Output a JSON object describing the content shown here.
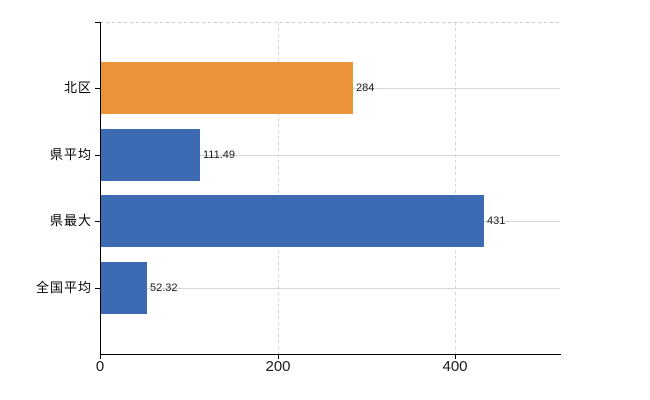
{
  "chart_data": {
    "type": "bar",
    "orientation": "horizontal",
    "title": "",
    "legend": "none",
    "categories": [
      "北区",
      "県平均",
      "県最大",
      "全国平均"
    ],
    "values": [
      284,
      111.49,
      431,
      52.32
    ],
    "value_labels": [
      "284",
      "111.49",
      "431",
      "52.32"
    ],
    "bar_colors": [
      "#EA9339",
      "#3D6BB3",
      "#3D6BB3",
      "#3D6BB3"
    ],
    "xlim": [
      0,
      518
    ],
    "x_ticks": [
      0,
      200,
      400
    ],
    "x_tick_labels": [
      "0",
      "200",
      "400"
    ],
    "grid": {
      "horizontal": "solid line at each category center",
      "vertical": "dashed line at each nonzero x tick",
      "top_border": "dashed"
    }
  },
  "colors": {
    "bar_orange": "#EA9339",
    "bar_blue": "#3D6BB3",
    "axis": "#000000",
    "text": "#1a1a1a",
    "gridline_horizontal": "#d2d9d0",
    "gridline_vertical": "#d8d2d2",
    "plot_border_dashed": "#c9c9c9",
    "background": "#ffffff"
  }
}
